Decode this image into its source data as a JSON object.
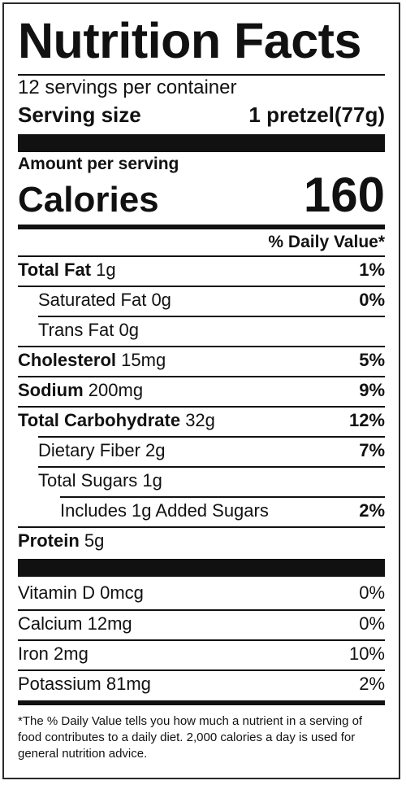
{
  "title": "Nutrition Facts",
  "servings_per_container": "12 servings per container",
  "serving_size": {
    "label": "Serving size",
    "value": "1 pretzel(77g)"
  },
  "amount_per_serving": "Amount per serving",
  "calories": {
    "label": "Calories",
    "value": "160"
  },
  "daily_value_header": "% Daily Value*",
  "nutrients": [
    {
      "name": "Total Fat",
      "amount": "1g",
      "dv": "1%"
    },
    {
      "name": "Saturated Fat",
      "amount": "0g",
      "dv": "0%"
    },
    {
      "name": "Trans Fat",
      "amount": "0g",
      "dv": ""
    },
    {
      "name": "Cholesterol",
      "amount": "15mg",
      "dv": "5%"
    },
    {
      "name": "Sodium",
      "amount": "200mg",
      "dv": "9%"
    },
    {
      "name": "Total Carbohydrate",
      "amount": "32g",
      "dv": "12%"
    },
    {
      "name": "Dietary Fiber",
      "amount": "2g",
      "dv": "7%"
    },
    {
      "name": "Total Sugars",
      "amount": "1g",
      "dv": ""
    },
    {
      "name": "Includes 1g Added Sugars",
      "amount": "",
      "dv": "2%"
    },
    {
      "name": "Protein",
      "amount": "5g",
      "dv": ""
    }
  ],
  "vitamins": [
    {
      "name": "Vitamin D",
      "amount": "0mcg",
      "dv": "0%"
    },
    {
      "name": "Calcium",
      "amount": "12mg",
      "dv": "0%"
    },
    {
      "name": "Iron",
      "amount": "2mg",
      "dv": "10%"
    },
    {
      "name": "Potassium",
      "amount": "81mg",
      "dv": "2%"
    }
  ],
  "footnote": "*The % Daily Value tells you how much a nutrient in a serving of food contributes to a daily diet. 2,000 calories a day is used for general nutrition advice."
}
